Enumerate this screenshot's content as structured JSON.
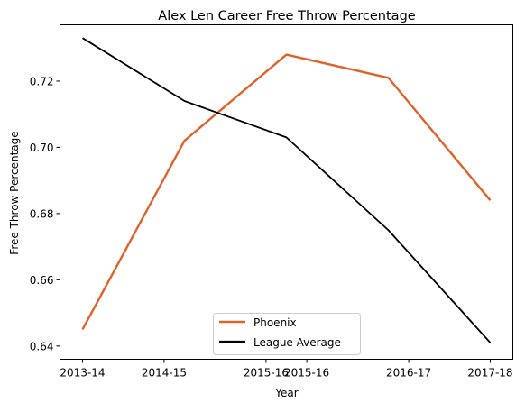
{
  "chart_data": {
    "type": "line",
    "title": "Alex Len Career Free Throw Percentage",
    "xlabel": "Year",
    "ylabel": "Free Throw Percentage",
    "categories": [
      "2013-14",
      "2014-15",
      "2015-16",
      "2015-16",
      "2016-17",
      "2017-18"
    ],
    "x": [
      0,
      0.8,
      1.8,
      2.2,
      3.2,
      4.0
    ],
    "ylim": [
      0.636,
      0.737
    ],
    "yticks": [
      "0.64",
      "0.66",
      "0.68",
      "0.70",
      "0.72"
    ],
    "ytick_values": [
      0.64,
      0.66,
      0.68,
      0.7,
      0.72
    ],
    "grid": false,
    "legend_position": "bottom-center",
    "series": [
      {
        "name": "Phoenix",
        "color": "#e0622a",
        "x": [
          0,
          1,
          2,
          3,
          4
        ],
        "values": [
          0.645,
          0.702,
          0.728,
          0.721,
          0.684
        ]
      },
      {
        "name": "League Average",
        "color": "#000000",
        "x": [
          0,
          1,
          2,
          3,
          4
        ],
        "values": [
          0.733,
          0.714,
          0.703,
          0.675,
          0.641
        ]
      }
    ]
  }
}
